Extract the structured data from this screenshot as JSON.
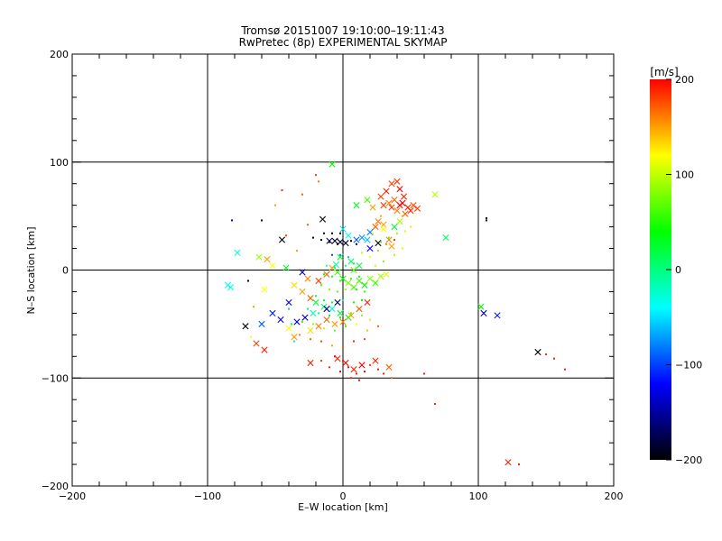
{
  "chart_data": {
    "type": "scatter",
    "title": "Tromsø 20151007 19:10:00–19:11:43",
    "subtitle": "RwPretec (8p) EXPERIMENTAL SKYMAP",
    "xlabel": "E–W location [km]",
    "ylabel": "N–S location [km]",
    "xlim": [
      -200,
      200
    ],
    "ylim": [
      -200,
      200
    ],
    "x_major_ticks": [
      -200,
      -100,
      0,
      100,
      200
    ],
    "y_major_ticks": [
      -200,
      -100,
      0,
      100,
      200
    ],
    "x_tick_labels": [
      "−200",
      "−100",
      "0",
      "100",
      "200"
    ],
    "y_tick_labels": [
      "−200",
      "−100",
      "0",
      "100",
      "200"
    ],
    "grid": true,
    "colorbar": {
      "label": "[m/s]",
      "range": [
        -200,
        200
      ],
      "ticks": [
        200,
        100,
        0,
        -100,
        -200
      ],
      "tick_labels": [
        "200",
        "100",
        "0",
        "−100",
        "−200"
      ],
      "colormap": [
        "#000000",
        "#0000ff",
        "#00ffff",
        "#00ff00",
        "#ffff00",
        "#ff0000"
      ]
    },
    "markers": {
      "cross": "large-x",
      "dot": "small-dot"
    },
    "points": [
      [
        -8,
        98,
        40,
        1
      ],
      [
        10,
        60,
        30,
        1
      ],
      [
        18,
        65,
        60,
        1
      ],
      [
        22,
        58,
        150,
        1
      ],
      [
        28,
        68,
        180,
        1
      ],
      [
        32,
        73,
        190,
        1
      ],
      [
        36,
        80,
        180,
        1
      ],
      [
        40,
        82,
        185,
        1
      ],
      [
        42,
        75,
        200,
        1
      ],
      [
        45,
        68,
        190,
        1
      ],
      [
        38,
        65,
        170,
        1
      ],
      [
        34,
        62,
        160,
        1
      ],
      [
        30,
        60,
        180,
        1
      ],
      [
        44,
        62,
        200,
        1
      ],
      [
        48,
        58,
        190,
        1
      ],
      [
        52,
        60,
        175,
        1
      ],
      [
        50,
        55,
        185,
        1
      ],
      [
        46,
        52,
        170,
        1
      ],
      [
        40,
        55,
        160,
        1
      ],
      [
        36,
        58,
        180,
        1
      ],
      [
        42,
        60,
        200,
        1
      ],
      [
        55,
        57,
        180,
        1
      ],
      [
        68,
        70,
        100,
        1
      ],
      [
        26,
        45,
        160,
        1
      ],
      [
        24,
        40,
        170,
        1
      ],
      [
        30,
        42,
        150,
        1
      ],
      [
        42,
        45,
        90,
        1
      ],
      [
        38,
        40,
        20,
        1
      ],
      [
        34,
        28,
        160,
        1
      ],
      [
        36,
        22,
        150,
        1
      ],
      [
        30,
        38,
        120,
        1
      ],
      [
        20,
        35,
        -80,
        1
      ],
      [
        18,
        28,
        -60,
        1
      ],
      [
        10,
        28,
        -90,
        1
      ],
      [
        14,
        30,
        -70,
        1
      ],
      [
        4,
        32,
        -40,
        1
      ],
      [
        0,
        38,
        -50,
        1
      ],
      [
        -15,
        47,
        -200,
        1
      ],
      [
        -6,
        27,
        -190,
        1
      ],
      [
        -2,
        26,
        -180,
        1
      ],
      [
        2,
        25,
        -195,
        1
      ],
      [
        -10,
        27,
        -170,
        1
      ],
      [
        -45,
        28,
        -200,
        1
      ],
      [
        -78,
        16,
        -30,
        1
      ],
      [
        -85,
        -14,
        -40,
        1
      ],
      [
        -83,
        -16,
        -30,
        1
      ],
      [
        -56,
        10,
        150,
        1
      ],
      [
        -52,
        4,
        120,
        1
      ],
      [
        -42,
        2,
        30,
        1
      ],
      [
        -30,
        -2,
        -140,
        1
      ],
      [
        -26,
        -8,
        160,
        1
      ],
      [
        -36,
        -14,
        130,
        1
      ],
      [
        -30,
        -20,
        150,
        1
      ],
      [
        -24,
        -26,
        170,
        1
      ],
      [
        -18,
        -10,
        180,
        1
      ],
      [
        -12,
        -4,
        170,
        1
      ],
      [
        -8,
        2,
        150,
        1
      ],
      [
        -4,
        -2,
        60,
        1
      ],
      [
        0,
        -8,
        40,
        1
      ],
      [
        4,
        -12,
        80,
        1
      ],
      [
        8,
        -16,
        60,
        1
      ],
      [
        12,
        -10,
        60,
        1
      ],
      [
        16,
        -14,
        40,
        1
      ],
      [
        20,
        -8,
        80,
        1
      ],
      [
        24,
        -12,
        60,
        1
      ],
      [
        28,
        -6,
        90,
        1
      ],
      [
        32,
        -4,
        110,
        1
      ],
      [
        -20,
        -30,
        20,
        1
      ],
      [
        -14,
        -34,
        10,
        1
      ],
      [
        -8,
        -36,
        -30,
        1
      ],
      [
        -2,
        -40,
        20,
        1
      ],
      [
        4,
        -44,
        30,
        1
      ],
      [
        -22,
        -40,
        -20,
        1
      ],
      [
        -28,
        -44,
        -150,
        1
      ],
      [
        -34,
        -48,
        -130,
        1
      ],
      [
        -40,
        -54,
        120,
        1
      ],
      [
        -46,
        -46,
        -120,
        1
      ],
      [
        -52,
        -40,
        -110,
        1
      ],
      [
        -60,
        -50,
        -90,
        1
      ],
      [
        -72,
        -52,
        -200,
        1
      ],
      [
        -64,
        -68,
        180,
        1
      ],
      [
        -58,
        -74,
        190,
        1
      ],
      [
        -36,
        -62,
        150,
        1
      ],
      [
        -24,
        -56,
        130,
        1
      ],
      [
        -18,
        -52,
        160,
        1
      ],
      [
        -12,
        -46,
        170,
        1
      ],
      [
        -6,
        -50,
        150,
        1
      ],
      [
        0,
        -48,
        160,
        1
      ],
      [
        6,
        -42,
        150,
        1
      ],
      [
        12,
        -36,
        170,
        1
      ],
      [
        18,
        -30,
        190,
        1
      ],
      [
        -12,
        -36,
        -150,
        1
      ],
      [
        -4,
        -30,
        -170,
        1
      ],
      [
        -24,
        -86,
        190,
        1
      ],
      [
        -4,
        -82,
        190,
        1
      ],
      [
        2,
        -86,
        200,
        1
      ],
      [
        8,
        -92,
        190,
        1
      ],
      [
        14,
        -88,
        200,
        1
      ],
      [
        24,
        -84,
        190,
        1
      ],
      [
        34,
        -90,
        170,
        1
      ],
      [
        102,
        -34,
        40,
        1
      ],
      [
        104,
        -40,
        -130,
        1
      ],
      [
        114,
        -42,
        -110,
        1
      ],
      [
        144,
        -76,
        -200,
        1
      ],
      [
        122,
        -178,
        190,
        1
      ],
      [
        76,
        30,
        10,
        1
      ],
      [
        -62,
        12,
        90,
        1
      ],
      [
        -58,
        -18,
        120,
        1
      ],
      [
        -40,
        -30,
        -120,
        1
      ],
      [
        -5,
        5,
        -10,
        1
      ],
      [
        6,
        8,
        10,
        1
      ],
      [
        12,
        4,
        20,
        1
      ],
      [
        -2,
        12,
        30,
        1
      ],
      [
        20,
        20,
        -120,
        1
      ],
      [
        26,
        25,
        -200,
        1
      ],
      [
        8,
        0,
        70,
        1
      ],
      [
        -45,
        74,
        190,
        0
      ],
      [
        -30,
        70,
        170,
        0
      ],
      [
        -20,
        88,
        180,
        0
      ],
      [
        -18,
        82,
        160,
        0
      ],
      [
        -50,
        60,
        150,
        0
      ],
      [
        -82,
        46,
        -140,
        0
      ],
      [
        -60,
        46,
        -200,
        0
      ],
      [
        -22,
        30,
        -200,
        0
      ],
      [
        -16,
        28,
        -190,
        0
      ],
      [
        -10,
        26,
        -200,
        0
      ],
      [
        -4,
        24,
        -200,
        0
      ],
      [
        6,
        27,
        -200,
        0
      ],
      [
        10,
        24,
        -180,
        0
      ],
      [
        -8,
        14,
        -100,
        0
      ],
      [
        -2,
        14,
        -80,
        0
      ],
      [
        4,
        12,
        -60,
        0
      ],
      [
        -12,
        4,
        -30,
        0
      ],
      [
        -6,
        2,
        -10,
        0
      ],
      [
        2,
        4,
        0,
        0
      ],
      [
        8,
        6,
        20,
        0
      ],
      [
        -14,
        -4,
        40,
        0
      ],
      [
        -8,
        -6,
        30,
        0
      ],
      [
        -2,
        -10,
        50,
        0
      ],
      [
        6,
        -8,
        60,
        0
      ],
      [
        12,
        -6,
        40,
        0
      ],
      [
        -16,
        -14,
        60,
        0
      ],
      [
        -10,
        -18,
        80,
        0
      ],
      [
        -4,
        -20,
        70,
        0
      ],
      [
        2,
        -18,
        90,
        0
      ],
      [
        10,
        -18,
        50,
        0
      ],
      [
        16,
        -20,
        60,
        0
      ],
      [
        -20,
        -24,
        20,
        0
      ],
      [
        -14,
        -28,
        10,
        0
      ],
      [
        -8,
        -30,
        30,
        0
      ],
      [
        0,
        -28,
        -10,
        0
      ],
      [
        8,
        -30,
        30,
        0
      ],
      [
        14,
        -28,
        40,
        0
      ],
      [
        -26,
        -36,
        10,
        0
      ],
      [
        -18,
        -40,
        -10,
        0
      ],
      [
        -10,
        -42,
        20,
        0
      ],
      [
        -2,
        -44,
        40,
        0
      ],
      [
        6,
        -40,
        60,
        0
      ],
      [
        14,
        -42,
        80,
        0
      ],
      [
        20,
        -46,
        100,
        0
      ],
      [
        -30,
        -48,
        60,
        0
      ],
      [
        -22,
        -50,
        80,
        0
      ],
      [
        -14,
        -54,
        100,
        0
      ],
      [
        -6,
        -56,
        70,
        0
      ],
      [
        2,
        -52,
        50,
        0
      ],
      [
        10,
        -50,
        120,
        0
      ],
      [
        18,
        -56,
        140,
        0
      ],
      [
        26,
        -52,
        170,
        0
      ],
      [
        -32,
        -60,
        160,
        0
      ],
      [
        -24,
        -64,
        170,
        0
      ],
      [
        -16,
        -66,
        180,
        0
      ],
      [
        -8,
        -70,
        150,
        0
      ],
      [
        0,
        -72,
        170,
        0
      ],
      [
        8,
        -66,
        190,
        0
      ],
      [
        16,
        -64,
        180,
        0
      ],
      [
        -6,
        -80,
        200,
        0
      ],
      [
        0,
        -84,
        190,
        0
      ],
      [
        4,
        -90,
        200,
        0
      ],
      [
        10,
        -96,
        190,
        0
      ],
      [
        16,
        -94,
        200,
        0
      ],
      [
        20,
        -88,
        180,
        0
      ],
      [
        26,
        -92,
        190,
        0
      ],
      [
        -2,
        -94,
        200,
        0
      ],
      [
        6,
        -100,
        190,
        0
      ],
      [
        12,
        -102,
        200,
        0
      ],
      [
        -10,
        -90,
        190,
        0
      ],
      [
        -16,
        -84,
        180,
        0
      ],
      [
        30,
        -96,
        190,
        0
      ],
      [
        36,
        -100,
        170,
        0
      ],
      [
        60,
        -96,
        190,
        0
      ],
      [
        68,
        -124,
        190,
        0
      ],
      [
        44,
        50,
        150,
        0
      ],
      [
        50,
        40,
        130,
        0
      ],
      [
        46,
        36,
        110,
        0
      ],
      [
        40,
        34,
        90,
        0
      ],
      [
        34,
        30,
        70,
        0
      ],
      [
        28,
        26,
        60,
        0
      ],
      [
        38,
        28,
        180,
        0
      ],
      [
        32,
        24,
        160,
        0
      ],
      [
        26,
        18,
        140,
        0
      ],
      [
        20,
        12,
        120,
        0
      ],
      [
        14,
        16,
        100,
        0
      ],
      [
        44,
        20,
        110,
        0
      ],
      [
        38,
        14,
        90,
        0
      ],
      [
        30,
        8,
        80,
        0
      ],
      [
        24,
        4,
        100,
        0
      ],
      [
        106,
        48,
        -200,
        0
      ],
      [
        106,
        46,
        -200,
        0
      ],
      [
        130,
        -180,
        190,
        0
      ],
      [
        150,
        -78,
        190,
        0
      ],
      [
        156,
        -82,
        190,
        0
      ],
      [
        164,
        -92,
        190,
        0
      ],
      [
        -68,
        -62,
        120,
        0
      ],
      [
        -40,
        -36,
        -60,
        0
      ],
      [
        -38,
        -50,
        20,
        0
      ],
      [
        -36,
        -66,
        -50,
        0
      ],
      [
        -70,
        -10,
        -200,
        0
      ],
      [
        -66,
        -34,
        150,
        0
      ],
      [
        -42,
        32,
        180,
        0
      ],
      [
        -34,
        18,
        150,
        0
      ],
      [
        -14,
        34,
        -190,
        0
      ],
      [
        -8,
        34,
        -200,
        0
      ],
      [
        -2,
        34,
        -200,
        0
      ],
      [
        22,
        34,
        110,
        0
      ],
      [
        28,
        50,
        150,
        0
      ],
      [
        -26,
        42,
        170,
        0
      ]
    ]
  }
}
